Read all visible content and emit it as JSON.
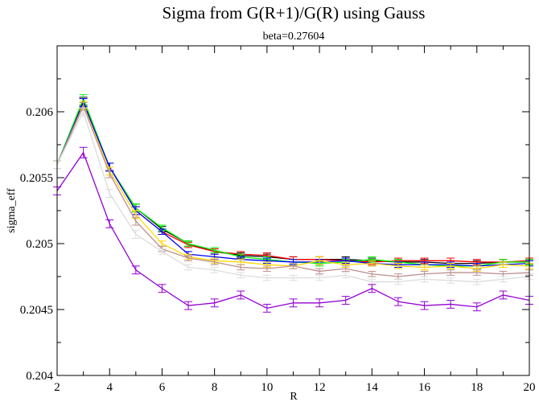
{
  "chart_data": {
    "type": "line",
    "title": "Sigma from G(R+1)/G(R) using Gauss",
    "subtitle": "beta=0.27604",
    "xlabel": "R",
    "ylabel": "sigma_eff",
    "xlim": [
      2,
      20
    ],
    "ylim": [
      0.204,
      0.2065
    ],
    "x_ticks": [
      2,
      4,
      6,
      8,
      10,
      12,
      14,
      16,
      18,
      20
    ],
    "y_ticks": [
      0.204,
      0.2045,
      0.205,
      0.2055,
      0.206
    ],
    "y_tick_labels": [
      "0.204",
      "0.2045",
      "0.205",
      "0.2055",
      "0.206"
    ],
    "x": [
      2,
      3,
      4,
      5,
      6,
      7,
      8,
      9,
      10,
      11,
      12,
      13,
      14,
      15,
      16,
      17,
      18,
      19,
      20
    ],
    "series": [
      {
        "name": "black",
        "color": "#000000",
        "values": [
          0.2056,
          0.20608,
          0.20558,
          0.20527,
          0.20511,
          0.205,
          0.20494,
          0.20491,
          0.2049,
          0.20488,
          0.20488,
          0.20488,
          0.20487,
          0.20486,
          0.20486,
          0.20485,
          0.20485,
          0.20486,
          0.20486
        ],
        "errors": [
          3e-05,
          3e-05,
          3e-05,
          3e-05,
          2e-05,
          2e-05,
          2e-05,
          2e-05,
          2e-05,
          2e-05,
          2e-05,
          2e-05,
          2e-05,
          2e-05,
          2e-05,
          2e-05,
          2e-05,
          2e-05,
          2e-05
        ]
      },
      {
        "name": "red",
        "color": "#ff0000",
        "values": [
          0.2056,
          0.20607,
          0.20558,
          0.20525,
          0.20509,
          0.20499,
          0.20494,
          0.20492,
          0.20491,
          0.20488,
          0.20488,
          0.20487,
          0.20486,
          0.20487,
          0.20487,
          0.20487,
          0.20486,
          0.20486,
          0.20487
        ],
        "errors": [
          3e-05,
          3e-05,
          3e-05,
          3e-05,
          2e-05,
          2e-05,
          2e-05,
          2e-05,
          2e-05,
          2e-05,
          2e-05,
          2e-05,
          2e-05,
          2e-05,
          2e-05,
          2e-05,
          2e-05,
          2e-05,
          2e-05
        ]
      },
      {
        "name": "green",
        "color": "#00ff00",
        "values": [
          0.2056,
          0.2061,
          0.20558,
          0.20527,
          0.20512,
          0.205,
          0.20495,
          0.2049,
          0.20488,
          0.20486,
          0.20485,
          0.20486,
          0.20488,
          0.20486,
          0.20484,
          0.20483,
          0.20483,
          0.20486,
          0.20486
        ],
        "errors": [
          3e-05,
          3e-05,
          3e-05,
          3e-05,
          2e-05,
          2e-05,
          2e-05,
          2e-05,
          2e-05,
          2e-05,
          2e-05,
          2e-05,
          2e-05,
          2e-05,
          2e-05,
          2e-05,
          2e-05,
          2e-05,
          2e-05
        ]
      },
      {
        "name": "blue",
        "color": "#0000ff",
        "values": [
          0.2056,
          0.20607,
          0.20558,
          0.20525,
          0.20509,
          0.20492,
          0.2049,
          0.20488,
          0.20487,
          0.20486,
          0.20486,
          0.20487,
          0.20485,
          0.20484,
          0.20484,
          0.20484,
          0.20483,
          0.20484,
          0.20485
        ],
        "errors": [
          3e-05,
          3e-05,
          3e-05,
          3e-05,
          2e-05,
          2e-05,
          2e-05,
          2e-05,
          2e-05,
          2e-05,
          2e-05,
          2e-05,
          2e-05,
          2e-05,
          2e-05,
          2e-05,
          2e-05,
          2e-05,
          2e-05
        ]
      },
      {
        "name": "yellow",
        "color": "#ffd700",
        "values": [
          0.2056,
          0.20605,
          0.20555,
          0.20522,
          0.205,
          0.2049,
          0.20487,
          0.20486,
          0.20484,
          0.20483,
          0.20487,
          0.20484,
          0.20485,
          0.20483,
          0.20482,
          0.20483,
          0.20481,
          0.20484,
          0.20483
        ],
        "errors": [
          3e-05,
          3e-05,
          3e-05,
          3e-05,
          2e-05,
          2e-05,
          2e-05,
          2e-05,
          2e-05,
          2e-05,
          3e-05,
          2e-05,
          2e-05,
          2e-05,
          2e-05,
          2e-05,
          2e-05,
          2e-05,
          2e-05
        ]
      },
      {
        "name": "tan",
        "color": "#bc8f8f",
        "values": [
          0.2056,
          0.20604,
          0.20553,
          0.20517,
          0.20496,
          0.20489,
          0.20486,
          0.20482,
          0.20481,
          0.20483,
          0.20479,
          0.20481,
          0.20477,
          0.20475,
          0.20477,
          0.20478,
          0.20478,
          0.20477,
          0.20478
        ],
        "errors": [
          3e-05,
          3e-05,
          3e-05,
          3e-05,
          2e-05,
          2e-05,
          2e-05,
          2e-05,
          2e-05,
          2e-05,
          2e-05,
          2e-05,
          2e-05,
          2e-05,
          2e-05,
          2e-05,
          2e-05,
          2e-05,
          2e-05
        ]
      },
      {
        "name": "light-grey",
        "color": "#dcdcdc",
        "values": [
          0.2056,
          0.206,
          0.20538,
          0.20507,
          0.20494,
          0.20482,
          0.2048,
          0.20476,
          0.20474,
          0.20474,
          0.20474,
          0.20476,
          0.20471,
          0.20471,
          0.20473,
          0.20472,
          0.20471,
          0.20473,
          0.20475
        ],
        "errors": [
          3e-05,
          3e-05,
          3e-05,
          3e-05,
          2e-05,
          2e-05,
          2e-05,
          2e-05,
          2e-05,
          2e-05,
          2e-05,
          2e-05,
          2e-05,
          2e-05,
          2e-05,
          2e-05,
          2e-05,
          2e-05,
          2e-05
        ]
      },
      {
        "name": "violet",
        "color": "#9400d3",
        "values": [
          0.2054,
          0.20569,
          0.20515,
          0.2048,
          0.20466,
          0.20453,
          0.20455,
          0.20461,
          0.20451,
          0.20455,
          0.20455,
          0.20457,
          0.20466,
          0.20456,
          0.20453,
          0.20454,
          0.20452,
          0.20461,
          0.20457
        ],
        "errors": [
          3e-05,
          4e-05,
          3e-05,
          3e-05,
          3e-05,
          3e-05,
          3e-05,
          3e-05,
          3e-05,
          3e-05,
          3e-05,
          3e-05,
          3e-05,
          3e-05,
          3e-05,
          3e-05,
          3e-05,
          3e-05,
          3e-05
        ]
      }
    ]
  }
}
